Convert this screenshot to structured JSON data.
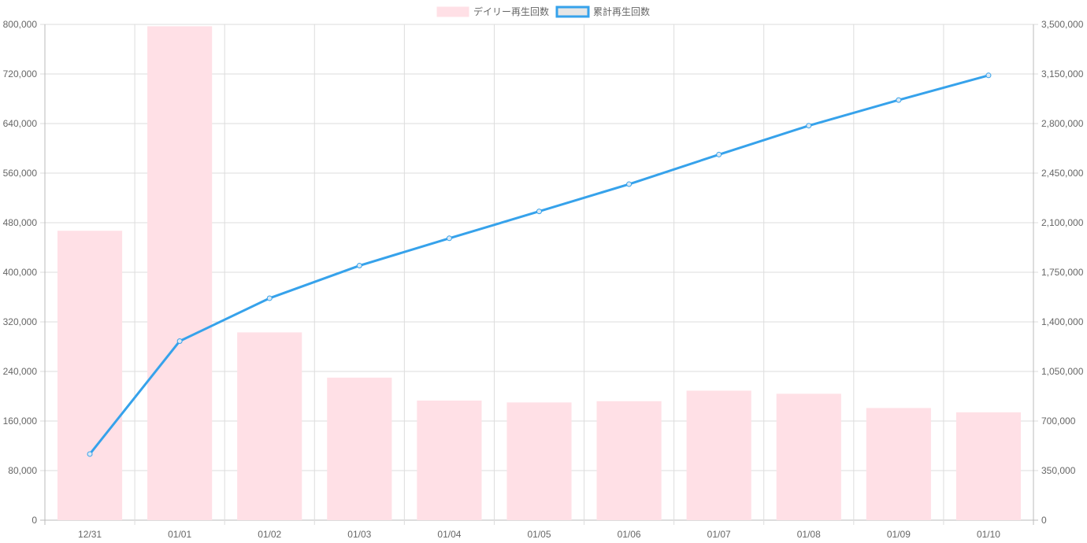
{
  "chart_data": {
    "type": "bar",
    "categories": [
      "12/31",
      "01/01",
      "01/02",
      "01/03",
      "01/04",
      "01/05",
      "01/06",
      "01/07",
      "01/08",
      "01/09",
      "01/10"
    ],
    "series": [
      {
        "name": "デイリー再生回数",
        "type": "bar",
        "axis": "left",
        "color": "#ffe0e6",
        "values": [
          467000,
          797000,
          303000,
          230000,
          193000,
          190000,
          192000,
          209000,
          204000,
          181000,
          174000
        ]
      },
      {
        "name": "累計再生回数",
        "type": "line",
        "axis": "right",
        "color": "#36a2eb",
        "values": [
          467000,
          1264000,
          1567000,
          1797000,
          1990000,
          2180000,
          2372000,
          2581000,
          2785000,
          2966000,
          3140000
        ]
      }
    ],
    "y_left": {
      "ylim": [
        0,
        800000
      ],
      "ticks": [
        "0",
        "80,000",
        "160,000",
        "240,000",
        "320,000",
        "400,000",
        "480,000",
        "560,000",
        "640,000",
        "720,000",
        "800,000"
      ]
    },
    "y_right": {
      "ylim": [
        0,
        3500000
      ],
      "ticks": [
        "0",
        "350,000",
        "700,000",
        "1,050,000",
        "1,400,000",
        "1,750,000",
        "2,100,000",
        "2,450,000",
        "2,800,000",
        "3,150,000",
        "3,500,000"
      ]
    },
    "grid": true,
    "legend": "top-center",
    "legend_items": [
      {
        "label": "デイリー再生回数",
        "fill": "#ffe0e6",
        "stroke": "#ffe0e6"
      },
      {
        "label": "累計再生回数",
        "fill": "#e6e6e6",
        "stroke": "#36a2eb"
      }
    ],
    "colors": {
      "grid": "#dddddd",
      "axis": "#bbbbbb",
      "tick_text": "#666666"
    }
  }
}
